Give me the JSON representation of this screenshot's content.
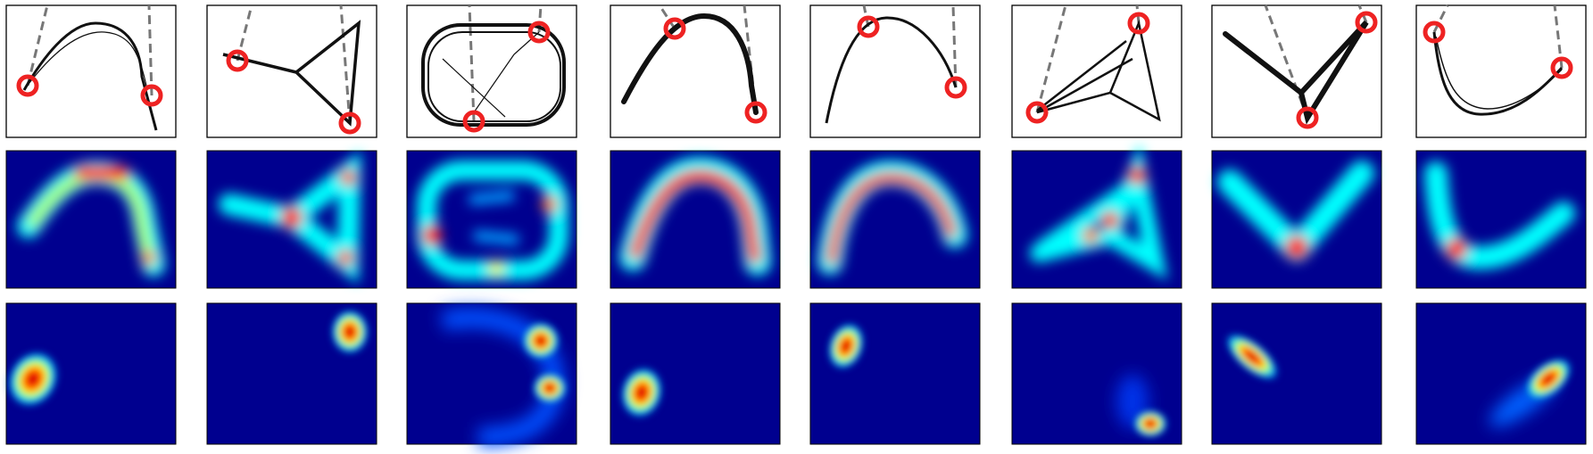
{
  "figure": {
    "rows": [
      "trajectory",
      "density-map",
      "localized-density"
    ],
    "columns": 8
  },
  "colors": {
    "trajectory": "#111111",
    "marker": "#ee2222",
    "dashed_link": "#777777",
    "panel_border": "#000000",
    "heatmap_background": "#00008f",
    "colormap": [
      "#00008f",
      "#0000ff",
      "#00a0ff",
      "#00ffff",
      "#7fff7f",
      "#ffff00",
      "#ff7f00",
      "#ff0000",
      "#800000"
    ]
  },
  "panels": [
    {
      "shape": "arch",
      "markers": 2
    },
    {
      "shape": "y-junction",
      "markers": 2
    },
    {
      "shape": "loop",
      "markers": 2
    },
    {
      "shape": "arch",
      "markers": 2
    },
    {
      "shape": "arch",
      "markers": 2
    },
    {
      "shape": "triangle",
      "markers": 2
    },
    {
      "shape": "v",
      "markers": 2
    },
    {
      "shape": "u",
      "markers": 2
    }
  ]
}
